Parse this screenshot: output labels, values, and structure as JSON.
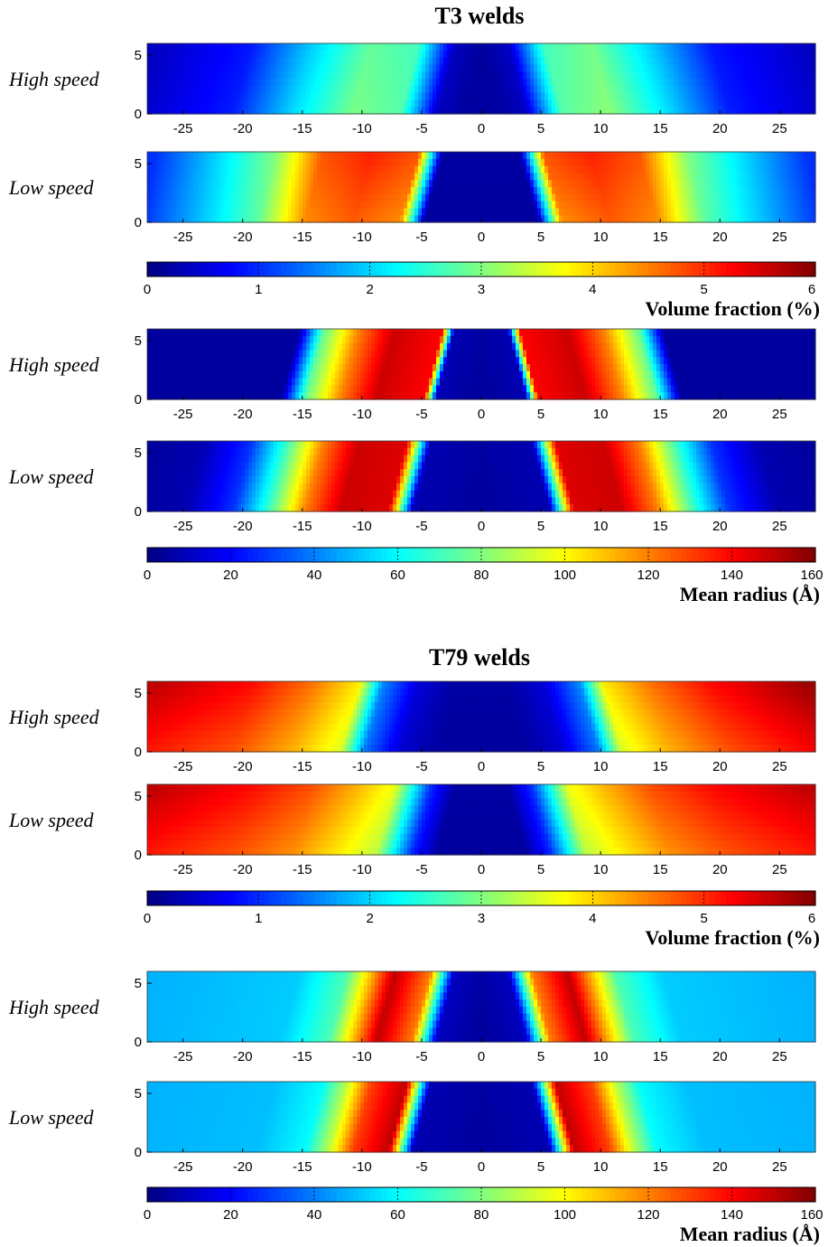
{
  "chart_data": {
    "type": "heatmap",
    "x_ticks": [
      "-25",
      "-20",
      "-15",
      "-10",
      "-5",
      "0",
      "5",
      "10",
      "15",
      "20",
      "25"
    ],
    "x_values": [
      -25,
      -20,
      -15,
      -10,
      -5,
      0,
      5,
      10,
      15,
      20,
      25
    ],
    "xlim": [
      -28,
      28
    ],
    "y_ticks": [
      "0",
      "5"
    ],
    "y_values": [
      0,
      5
    ],
    "ylim": [
      0,
      6
    ],
    "groups": [
      {
        "title": "T3 welds",
        "blocks": [
          {
            "quantity": "volume_fraction",
            "rows": [
              {
                "label": "High speed",
                "profile": [
                  [
                    -28,
                    0.4
                  ],
                  [
                    -20,
                    0.9
                  ],
                  [
                    -15,
                    2.0
                  ],
                  [
                    -10,
                    2.9
                  ],
                  [
                    -6,
                    2.7
                  ],
                  [
                    -3,
                    0.4
                  ],
                  [
                    -1,
                    0.2
                  ],
                  [
                    0,
                    0.2
                  ],
                  [
                    1,
                    0.2
                  ],
                  [
                    3,
                    0.4
                  ],
                  [
                    6,
                    2.7
                  ],
                  [
                    10,
                    3.0
                  ],
                  [
                    15,
                    2.0
                  ],
                  [
                    20,
                    0.9
                  ],
                  [
                    28,
                    0.4
                  ]
                ],
                "depth_trend": 0.15
              },
              {
                "label": "Low speed",
                "profile": [
                  [
                    -28,
                    1.0
                  ],
                  [
                    -22,
                    2.1
                  ],
                  [
                    -18,
                    2.9
                  ],
                  [
                    -14,
                    4.6
                  ],
                  [
                    -10,
                    4.9
                  ],
                  [
                    -6,
                    4.6
                  ],
                  [
                    -4,
                    0.2
                  ],
                  [
                    0,
                    0.2
                  ],
                  [
                    4,
                    0.2
                  ],
                  [
                    6,
                    4.6
                  ],
                  [
                    10,
                    4.9
                  ],
                  [
                    14,
                    4.6
                  ],
                  [
                    18,
                    2.9
                  ],
                  [
                    22,
                    2.1
                  ],
                  [
                    28,
                    1.0
                  ]
                ],
                "depth_trend": -0.25
              }
            ],
            "colorbar": {
              "min": 0,
              "max": 6,
              "ticks": [
                "0",
                "1",
                "2",
                "3",
                "4",
                "5",
                "6"
              ],
              "tick_values": [
                0,
                1,
                2,
                3,
                4,
                5,
                6
              ],
              "label": "Volume fraction (%)"
            }
          },
          {
            "quantity": "mean_radius",
            "rows": [
              {
                "label": "High speed",
                "profile": [
                  [
                    -28,
                    5
                  ],
                  [
                    -16,
                    5
                  ],
                  [
                    -14,
                    75
                  ],
                  [
                    -11,
                    120
                  ],
                  [
                    -8,
                    148
                  ],
                  [
                    -4,
                    140
                  ],
                  [
                    -3,
                    8
                  ],
                  [
                    0,
                    5
                  ],
                  [
                    3,
                    8
                  ],
                  [
                    4,
                    140
                  ],
                  [
                    8,
                    148
                  ],
                  [
                    11,
                    120
                  ],
                  [
                    14,
                    75
                  ],
                  [
                    16,
                    5
                  ],
                  [
                    28,
                    5
                  ]
                ],
                "depth_trend": 0.0
              },
              {
                "label": "Low speed",
                "profile": [
                  [
                    -28,
                    5
                  ],
                  [
                    -24,
                    8
                  ],
                  [
                    -20,
                    28
                  ],
                  [
                    -17,
                    70
                  ],
                  [
                    -14,
                    120
                  ],
                  [
                    -11,
                    148
                  ],
                  [
                    -7,
                    145
                  ],
                  [
                    -5,
                    8
                  ],
                  [
                    0,
                    5
                  ],
                  [
                    5,
                    8
                  ],
                  [
                    7,
                    145
                  ],
                  [
                    11,
                    148
                  ],
                  [
                    14,
                    120
                  ],
                  [
                    17,
                    70
                  ],
                  [
                    20,
                    28
                  ],
                  [
                    24,
                    8
                  ],
                  [
                    28,
                    5
                  ]
                ],
                "depth_trend": 0.0
              }
            ],
            "colorbar": {
              "min": 0,
              "max": 160,
              "ticks": [
                "0",
                "20",
                "40",
                "60",
                "80",
                "100",
                "120",
                "140",
                "160"
              ],
              "tick_values": [
                0,
                20,
                40,
                60,
                80,
                100,
                120,
                140,
                160
              ],
              "label": "Mean radius (Å)"
            }
          }
        ]
      },
      {
        "title": "T79 welds",
        "blocks": [
          {
            "quantity": "volume_fraction",
            "rows": [
              {
                "label": "High speed",
                "profile": [
                  [
                    -28,
                    5.4
                  ],
                  [
                    -20,
                    5.0
                  ],
                  [
                    -15,
                    4.4
                  ],
                  [
                    -11,
                    3.7
                  ],
                  [
                    -9,
                    1.5
                  ],
                  [
                    -6,
                    0.5
                  ],
                  [
                    -3,
                    0.2
                  ],
                  [
                    0,
                    0.2
                  ],
                  [
                    3,
                    0.2
                  ],
                  [
                    6,
                    0.5
                  ],
                  [
                    9,
                    1.5
                  ],
                  [
                    11,
                    3.7
                  ],
                  [
                    15,
                    4.4
                  ],
                  [
                    20,
                    5.0
                  ],
                  [
                    28,
                    5.6
                  ]
                ],
                "depth_trend": -0.3
              },
              {
                "label": "Low speed",
                "profile": [
                  [
                    -28,
                    5.4
                  ],
                  [
                    -20,
                    5.0
                  ],
                  [
                    -15,
                    4.6
                  ],
                  [
                    -11,
                    4.0
                  ],
                  [
                    -8,
                    3.5
                  ],
                  [
                    -5,
                    1.0
                  ],
                  [
                    -3,
                    0.2
                  ],
                  [
                    0,
                    0.2
                  ],
                  [
                    3,
                    0.2
                  ],
                  [
                    5,
                    1.0
                  ],
                  [
                    8,
                    3.5
                  ],
                  [
                    11,
                    4.0
                  ],
                  [
                    15,
                    4.6
                  ],
                  [
                    20,
                    5.0
                  ],
                  [
                    28,
                    5.4
                  ]
                ],
                "depth_trend": -0.3
              }
            ],
            "colorbar": {
              "min": 0,
              "max": 6,
              "ticks": [
                "0",
                "1",
                "2",
                "3",
                "4",
                "5",
                "6"
              ],
              "tick_values": [
                0,
                1,
                2,
                3,
                4,
                5,
                6
              ],
              "label": "Volume fraction (%)"
            }
          },
          {
            "quantity": "mean_radius",
            "rows": [
              {
                "label": "High speed",
                "profile": [
                  [
                    -28,
                    48
                  ],
                  [
                    -16,
                    52
                  ],
                  [
                    -12,
                    72
                  ],
                  [
                    -10,
                    110
                  ],
                  [
                    -8,
                    150
                  ],
                  [
                    -5,
                    120
                  ],
                  [
                    -3,
                    10
                  ],
                  [
                    0,
                    5
                  ],
                  [
                    3,
                    10
                  ],
                  [
                    5,
                    120
                  ],
                  [
                    8,
                    150
                  ],
                  [
                    10,
                    110
                  ],
                  [
                    12,
                    72
                  ],
                  [
                    16,
                    52
                  ],
                  [
                    28,
                    48
                  ]
                ],
                "depth_trend": 0.0
              },
              {
                "label": "Low speed",
                "profile": [
                  [
                    -28,
                    48
                  ],
                  [
                    -18,
                    50
                  ],
                  [
                    -14,
                    60
                  ],
                  [
                    -12,
                    90
                  ],
                  [
                    -10,
                    130
                  ],
                  [
                    -7,
                    150
                  ],
                  [
                    -5,
                    8
                  ],
                  [
                    0,
                    5
                  ],
                  [
                    5,
                    8
                  ],
                  [
                    7,
                    150
                  ],
                  [
                    10,
                    130
                  ],
                  [
                    12,
                    90
                  ],
                  [
                    14,
                    60
                  ],
                  [
                    18,
                    50
                  ],
                  [
                    28,
                    48
                  ]
                ],
                "depth_trend": 0.0
              }
            ],
            "colorbar": {
              "min": 0,
              "max": 160,
              "ticks": [
                "0",
                "20",
                "40",
                "60",
                "80",
                "100",
                "120",
                "140",
                "160"
              ],
              "tick_values": [
                0,
                20,
                40,
                60,
                80,
                100,
                120,
                140,
                160
              ],
              "label": "Mean radius (Å)"
            }
          }
        ]
      }
    ],
    "colormap": "jet"
  }
}
